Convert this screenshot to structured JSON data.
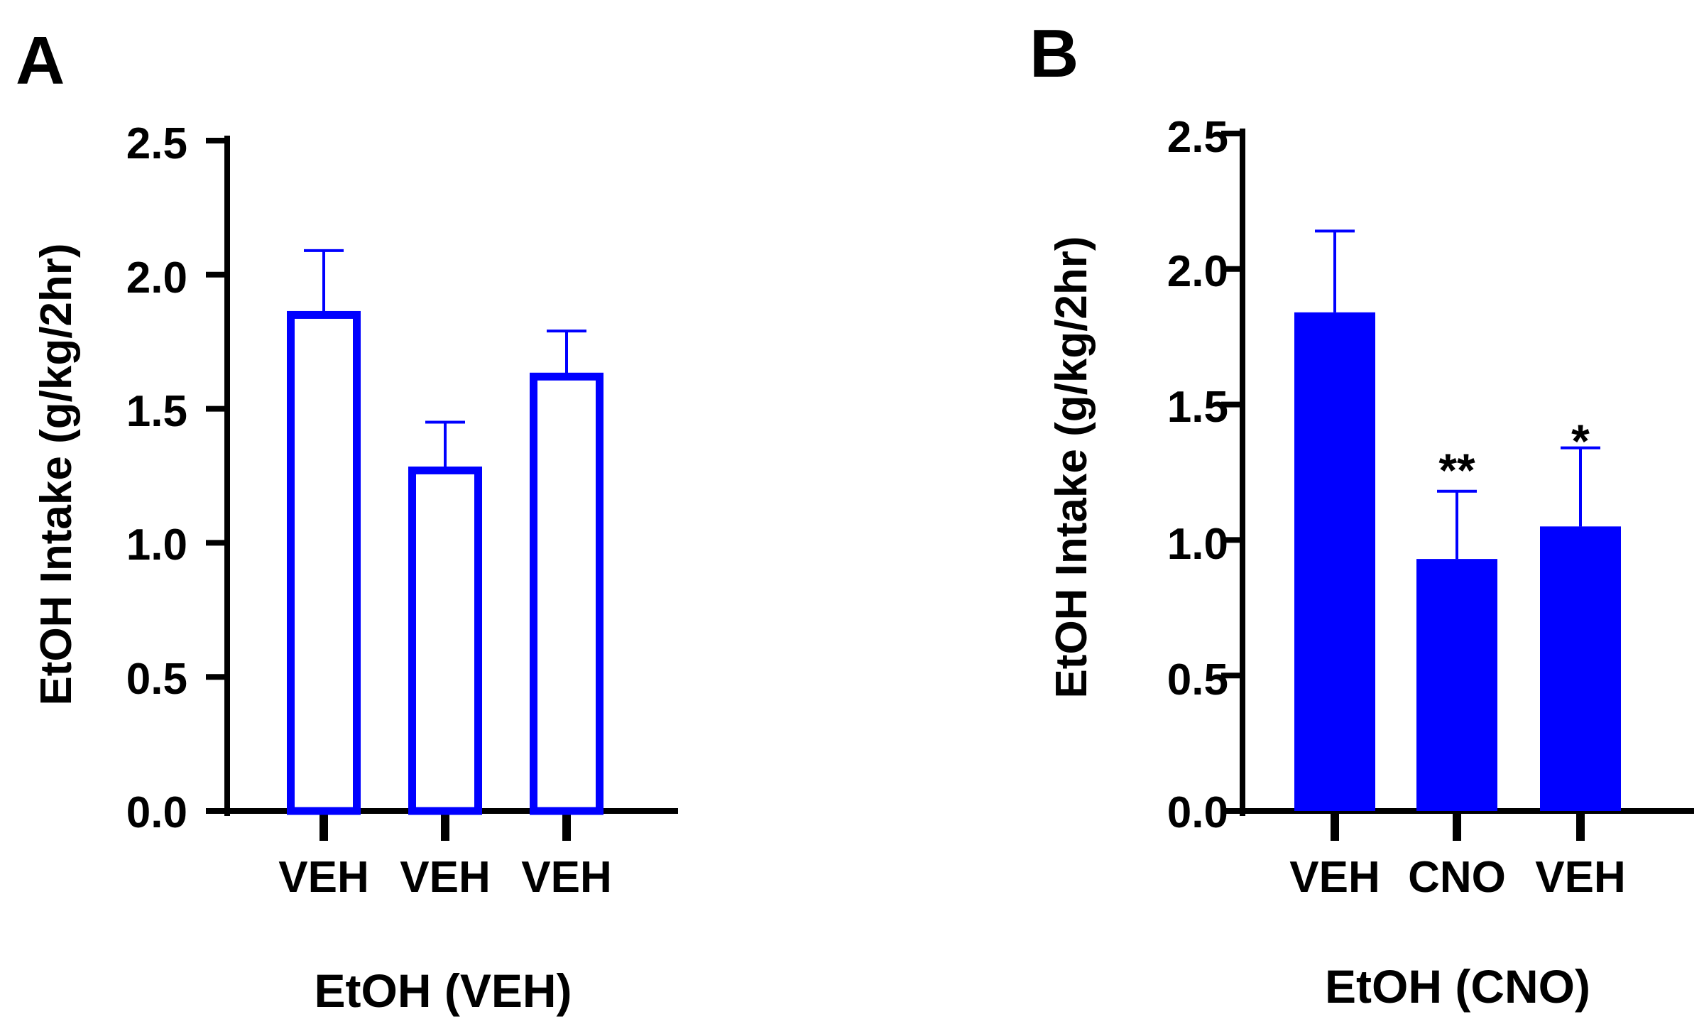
{
  "colors": {
    "bar": "#0000ff",
    "axis": "#000000"
  },
  "chart_data": [
    {
      "panel_label": "A",
      "type": "bar",
      "bar_style": "outline",
      "categories": [
        "VEH",
        "VEH",
        "VEH"
      ],
      "values": [
        1.85,
        1.27,
        1.62
      ],
      "errors": [
        0.24,
        0.18,
        0.17
      ],
      "annotations": [
        "",
        "",
        ""
      ],
      "ylabel": "EtOH Intake (g/kg/2hr)",
      "xlabel": "EtOH (VEH)",
      "ylim": [
        0,
        2.5
      ],
      "yticks": [
        "0.0",
        "0.5",
        "1.0",
        "1.5",
        "2.0",
        "2.5"
      ],
      "grid": false
    },
    {
      "panel_label": "B",
      "type": "bar",
      "bar_style": "filled",
      "categories": [
        "VEH",
        "CNO",
        "VEH"
      ],
      "values": [
        1.84,
        0.93,
        1.05
      ],
      "errors": [
        0.3,
        0.25,
        0.29
      ],
      "annotations": [
        "",
        "**",
        "*"
      ],
      "ylabel": "EtOH Intake (g/kg/2hr)",
      "xlabel": "EtOH (CNO)",
      "ylim": [
        0,
        2.5
      ],
      "yticks": [
        "0.0",
        "0.5",
        "1.0",
        "1.5",
        "2.0",
        "2.5"
      ],
      "grid": false
    }
  ]
}
